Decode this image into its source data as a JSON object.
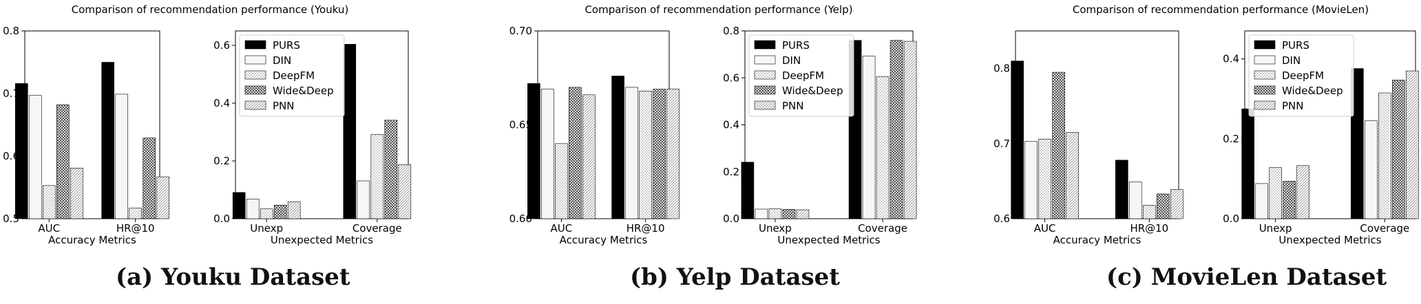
{
  "methods": [
    "PURS",
    "DIN",
    "DeepFM",
    "Wide&Deep",
    "PNN"
  ],
  "captions": [
    "(a) Youku Dataset",
    "(b) Yelp Dataset",
    "(c) MovieLen Dataset"
  ],
  "chart_data": [
    {
      "type": "bar",
      "dataset": "Youku",
      "title": "Comparison of recommendation performance (Youku)",
      "accuracy": {
        "xlabel": "Accuracy Metrics",
        "categories": [
          "AUC",
          "HR@10"
        ],
        "ylim": [
          0.5,
          0.8
        ],
        "yticks": [
          "0.5",
          "0.6",
          "0.7",
          "0.8"
        ],
        "series": [
          {
            "name": "PURS",
            "values": [
              0.716,
              0.75
            ]
          },
          {
            "name": "DIN",
            "values": [
              0.697,
              0.699
            ]
          },
          {
            "name": "DeepFM",
            "values": [
              0.553,
              0.517
            ]
          },
          {
            "name": "Wide&Deep",
            "values": [
              0.682,
              0.629
            ]
          },
          {
            "name": "PNN",
            "values": [
              0.581,
              0.567
            ]
          }
        ]
      },
      "unexpected": {
        "xlabel": "Unexpected Metrics",
        "categories": [
          "Unexp",
          "Coverage"
        ],
        "ylim": [
          0,
          0.65
        ],
        "yticks": [
          "0.0",
          "0.2",
          "0.4",
          "0.6"
        ],
        "series": [
          {
            "name": "PURS",
            "values": [
              0.091,
              0.604
            ]
          },
          {
            "name": "DIN",
            "values": [
              0.068,
              0.131
            ]
          },
          {
            "name": "DeepFM",
            "values": [
              0.034,
              0.292
            ]
          },
          {
            "name": "Wide&Deep",
            "values": [
              0.047,
              0.341
            ]
          },
          {
            "name": "PNN",
            "values": [
              0.059,
              0.187
            ]
          }
        ]
      }
    },
    {
      "type": "bar",
      "dataset": "Yelp",
      "title": "Comparison of recommendation performance (Yelp)",
      "accuracy": {
        "xlabel": "Accuracy Metrics",
        "categories": [
          "AUC",
          "HR@10"
        ],
        "ylim": [
          0.6,
          0.7
        ],
        "yticks": [
          "0.60",
          "0.65",
          "0.70"
        ],
        "series": [
          {
            "name": "PURS",
            "values": [
              0.672,
              0.676
            ]
          },
          {
            "name": "DIN",
            "values": [
              0.669,
              0.67
            ]
          },
          {
            "name": "DeepFM",
            "values": [
              0.64,
              0.668
            ]
          },
          {
            "name": "Wide&Deep",
            "values": [
              0.67,
              0.669
            ]
          },
          {
            "name": "PNN",
            "values": [
              0.666,
              0.669
            ]
          }
        ]
      },
      "unexpected": {
        "xlabel": "Unexpected Metrics",
        "categories": [
          "Unexp",
          "Coverage"
        ],
        "ylim": [
          0,
          0.8
        ],
        "yticks": [
          "0.0",
          "0.2",
          "0.4",
          "0.6",
          "0.8"
        ],
        "series": [
          {
            "name": "PURS",
            "values": [
              0.241,
              0.76
            ]
          },
          {
            "name": "DIN",
            "values": [
              0.041,
              0.693
            ]
          },
          {
            "name": "DeepFM",
            "values": [
              0.043,
              0.605
            ]
          },
          {
            "name": "Wide&Deep",
            "values": [
              0.04,
              0.76
            ]
          },
          {
            "name": "PNN",
            "values": [
              0.038,
              0.756
            ]
          }
        ]
      }
    },
    {
      "type": "bar",
      "dataset": "MovieLen",
      "title": "Comparison of recommendation performance (MovieLen)",
      "accuracy": {
        "xlabel": "Accuracy Metrics",
        "categories": [
          "AUC",
          "HR@10"
        ],
        "ylim": [
          0.6,
          0.85
        ],
        "yticks": [
          "0.6",
          "0.7",
          "0.8"
        ],
        "series": [
          {
            "name": "PURS",
            "values": [
              0.81,
              0.678
            ]
          },
          {
            "name": "DIN",
            "values": [
              0.703,
              0.649
            ]
          },
          {
            "name": "DeepFM",
            "values": [
              0.706,
              0.618
            ]
          },
          {
            "name": "Wide&Deep",
            "values": [
              0.795,
              0.633
            ]
          },
          {
            "name": "PNN",
            "values": [
              0.715,
              0.639
            ]
          }
        ]
      },
      "unexpected": {
        "xlabel": "Unexpected Metrics",
        "categories": [
          "Unexp",
          "Coverage"
        ],
        "ylim": [
          0,
          0.47
        ],
        "yticks": [
          "0.0",
          "0.2",
          "0.4"
        ],
        "series": [
          {
            "name": "PURS",
            "values": [
              0.275,
              0.376
            ]
          },
          {
            "name": "DIN",
            "values": [
              0.088,
              0.245
            ]
          },
          {
            "name": "DeepFM",
            "values": [
              0.128,
              0.315
            ]
          },
          {
            "name": "Wide&Deep",
            "values": [
              0.094,
              0.347
            ]
          },
          {
            "name": "PNN",
            "values": [
              0.133,
              0.37
            ]
          }
        ]
      }
    }
  ]
}
